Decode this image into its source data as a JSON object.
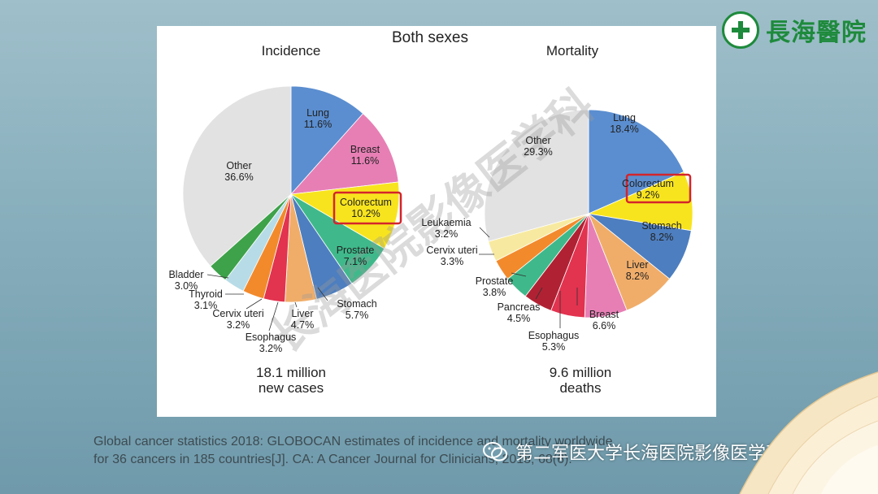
{
  "logo": {
    "name": "長海醫院"
  },
  "panel_title": "Both sexes",
  "citation": {
    "line1": "Global cancer statistics 2018: GLOBOCAN estimates of incidence and mortality worldwide",
    "line2": "for 36 cancers in 185 countries[J]. CA: A Cancer Journal for Clinicians, 2018, 68(6)."
  },
  "watermark": {
    "diagonal": "长海医院影像医学科",
    "bottom": "第二军医大学长海医院影像医学科"
  },
  "colors": {
    "Lung": "#5b8ed0",
    "Breast": "#e77fb5",
    "Colorectum": "#f8e41e",
    "Prostate": "#3fb98b",
    "Stomach": "#4d7ebf",
    "Liver": "#f0ad6a",
    "Esophagus": "#e2334f",
    "Cervix uteri": "#f28a2c",
    "Thyroid": "#b7dce7",
    "Bladder": "#3ea24a",
    "Leukaemia": "#f7eaa0",
    "Pancreas": "#b02233",
    "Other": "#e2e2e2",
    "highlight": "#d4242b"
  },
  "chart_data": [
    {
      "type": "pie",
      "title": "Incidence",
      "caption_line1": "18.1 million",
      "caption_line2": "new cases",
      "slices": [
        {
          "label": "Lung",
          "value": 11.6,
          "text": "11.6%"
        },
        {
          "label": "Breast",
          "value": 11.6,
          "text": "11.6%"
        },
        {
          "label": "Colorectum",
          "value": 10.2,
          "text": "10.2%",
          "highlight": true
        },
        {
          "label": "Prostate",
          "value": 7.1,
          "text": "7.1%"
        },
        {
          "label": "Stomach",
          "value": 5.7,
          "text": "5.7%"
        },
        {
          "label": "Liver",
          "value": 4.7,
          "text": "4.7%"
        },
        {
          "label": "Esophagus",
          "value": 3.2,
          "text": "3.2%"
        },
        {
          "label": "Cervix uteri",
          "value": 3.2,
          "text": "3.2%"
        },
        {
          "label": "Thyroid",
          "value": 3.1,
          "text": "3.1%"
        },
        {
          "label": "Bladder",
          "value": 3.0,
          "text": "3.0%"
        },
        {
          "label": "Other",
          "value": 36.6,
          "text": "36.6%"
        }
      ]
    },
    {
      "type": "pie",
      "title": "Mortality",
      "caption_line1": "9.6 million",
      "caption_line2": "deaths",
      "slices": [
        {
          "label": "Lung",
          "value": 18.4,
          "text": "18.4%"
        },
        {
          "label": "Colorectum",
          "value": 9.2,
          "text": "9.2%",
          "highlight": true
        },
        {
          "label": "Stomach",
          "value": 8.2,
          "text": "8.2%"
        },
        {
          "label": "Liver",
          "value": 8.2,
          "text": "8.2%"
        },
        {
          "label": "Breast",
          "value": 6.6,
          "text": "6.6%"
        },
        {
          "label": "Esophagus",
          "value": 5.3,
          "text": "5.3%"
        },
        {
          "label": "Pancreas",
          "value": 4.5,
          "text": "4.5%"
        },
        {
          "label": "Prostate",
          "value": 3.8,
          "text": "3.8%"
        },
        {
          "label": "Cervix uteri",
          "value": 3.3,
          "text": "3.3%"
        },
        {
          "label": "Leukaemia",
          "value": 3.2,
          "text": "3.2%"
        },
        {
          "label": "Other",
          "value": 29.3,
          "text": "29.3%"
        }
      ]
    }
  ]
}
